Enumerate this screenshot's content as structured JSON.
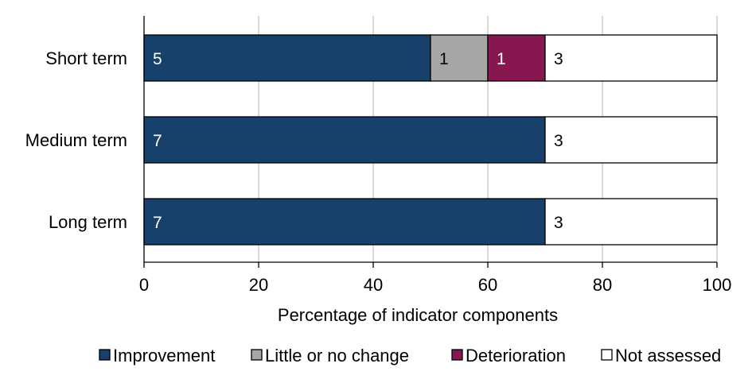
{
  "chart_data": {
    "type": "bar",
    "orientation": "horizontal",
    "stacked": true,
    "categories": [
      "Short term",
      "Medium term",
      "Long term"
    ],
    "series": [
      {
        "name": "Improvement",
        "color": "#17416b",
        "counts": [
          5,
          7,
          7
        ],
        "values": [
          50,
          70,
          70
        ],
        "label_color": "#ffffff"
      },
      {
        "name": "Little or no change",
        "color": "#a6a6a6",
        "counts": [
          1,
          0,
          0
        ],
        "values": [
          10,
          0,
          0
        ],
        "label_color": "#000000"
      },
      {
        "name": "Deterioration",
        "color": "#86174f",
        "counts": [
          1,
          0,
          0
        ],
        "values": [
          10,
          0,
          0
        ],
        "label_color": "#ffffff"
      },
      {
        "name": "Not assessed",
        "color": "#ffffff",
        "counts": [
          3,
          3,
          3
        ],
        "values": [
          30,
          30,
          30
        ],
        "label_color": "#000000"
      }
    ],
    "xlabel": "Percentage of indicator components",
    "xlim": [
      0,
      100
    ],
    "xticks": [
      0,
      20,
      40,
      60,
      80,
      100
    ],
    "grid": "vertical",
    "legend_position": "bottom"
  }
}
